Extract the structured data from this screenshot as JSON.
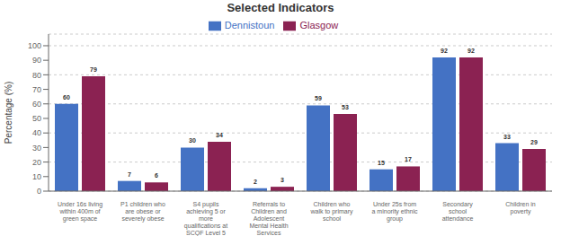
{
  "chart_data": {
    "type": "bar",
    "title": "Selected Indicators",
    "categories": [
      "Under 16s living\nwithin 400m of\ngreen space",
      "P1 children who\nare obese or\nseverely obese",
      "S4 pupils\nachieving 5 or\nmore\nqualifications at\nSCQF Level 5",
      "Referrals to\nChildren and\nAdolescent\nMental Health\nServices",
      "Children who\nwalk to primary\nschool",
      "Under 25s from\na minority ethnic\ngroup",
      "Secondary\nschool\nattendance",
      "Children in\npoverty"
    ],
    "series": [
      {
        "name": "Dennistoun",
        "color": "#4472C4",
        "values": [
          60,
          7,
          30,
          2,
          59,
          15,
          92,
          33
        ]
      },
      {
        "name": "Glasgow",
        "color": "#8B2252",
        "values": [
          79,
          6,
          34,
          3,
          53,
          17,
          92,
          29
        ]
      }
    ],
    "ylabel": "Percentage (%)",
    "ylim": [
      0,
      108
    ],
    "yticks": [
      0,
      10,
      20,
      30,
      40,
      50,
      60,
      70,
      80,
      90,
      100
    ],
    "grid": true,
    "legend": "top",
    "data_labels": true
  }
}
